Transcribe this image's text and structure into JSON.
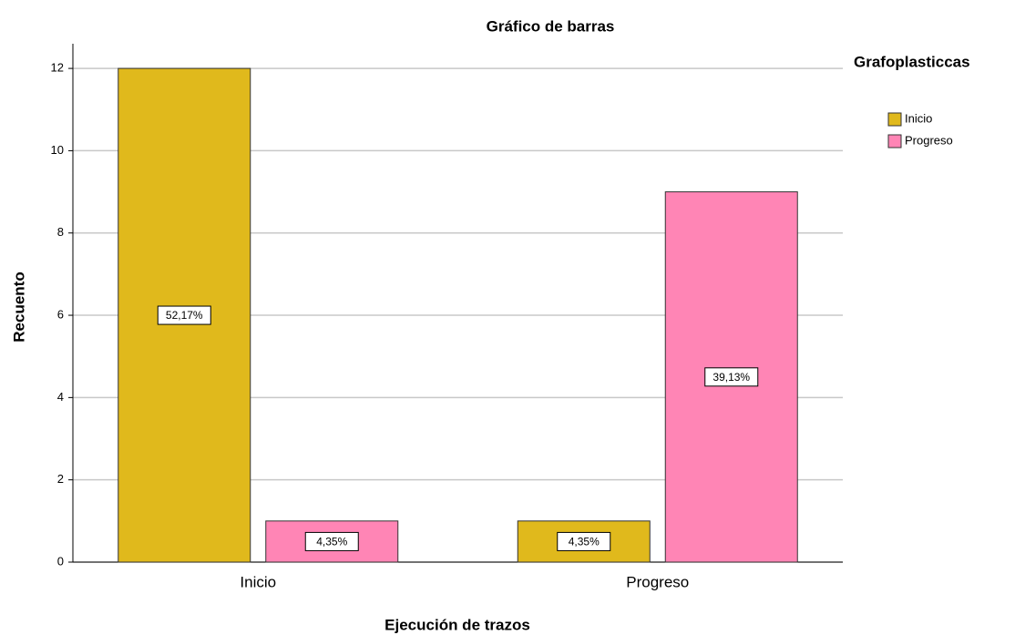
{
  "chart_data": {
    "type": "bar",
    "title": "Gráfico de barras",
    "x_label": "Ejecución de trazos",
    "y_label": "Recuento",
    "legend_title": "Grafoplasticcas",
    "legend_position": "right",
    "grid": true,
    "categories": [
      "Inicio",
      "Progreso"
    ],
    "series": [
      {
        "name": "Inicio",
        "color": "#e0b91c",
        "values": [
          12,
          1
        ],
        "percent_labels": [
          "52,17%",
          "4,35%"
        ]
      },
      {
        "name": "Progreso",
        "color": "#ff85b5",
        "values": [
          1,
          9
        ],
        "percent_labels": [
          "4,35%",
          "39,13%"
        ]
      }
    ],
    "ylim": [
      0,
      12.6
    ],
    "yticks": [
      0,
      2,
      4,
      6,
      8,
      10,
      12
    ]
  }
}
